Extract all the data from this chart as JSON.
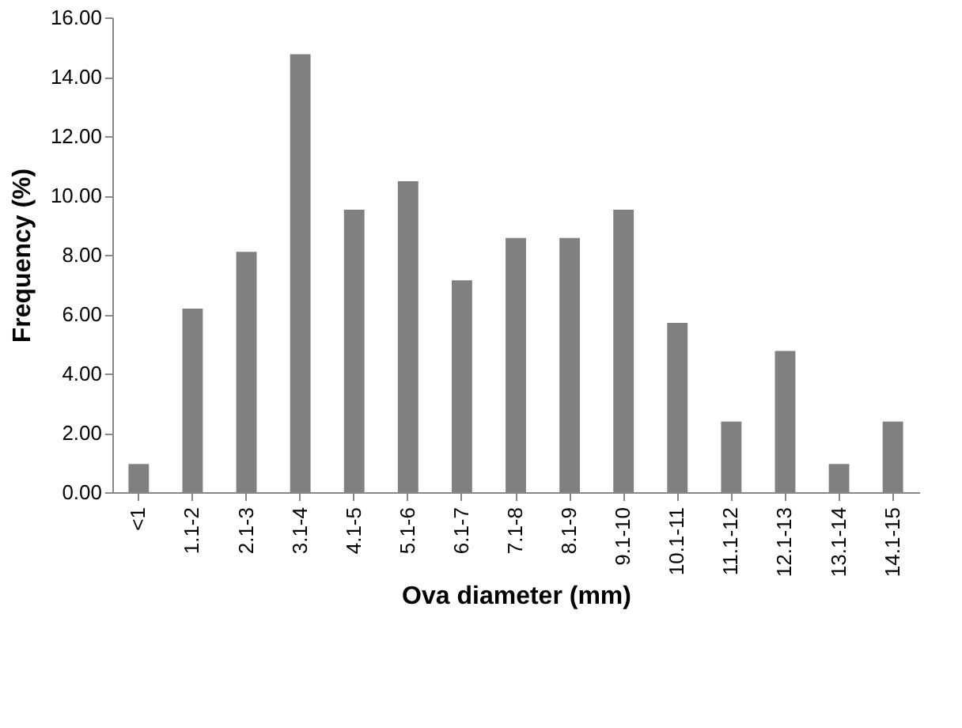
{
  "chart_data": {
    "type": "bar",
    "xlabel": "Ova diameter (mm)",
    "ylabel": "Frequency (%)",
    "categories": [
      "<1",
      "1.1-2",
      "2.1-3",
      "3.1-4",
      "4.1-5",
      "5.1-6",
      "6.1-7",
      "7.1-8",
      "8.1-9",
      "9.1-10",
      "10.1-11",
      "11.1-12",
      "12.1-13",
      "13.1-14",
      "14.1-15"
    ],
    "values": [
      0.95,
      6.19,
      8.1,
      14.76,
      9.52,
      10.48,
      7.14,
      8.57,
      8.57,
      9.52,
      5.71,
      2.38,
      4.76,
      0.95,
      2.38
    ],
    "color": "#808080",
    "ylim": [
      0,
      16
    ],
    "yticks": [
      {
        "value": 0,
        "label": "0.00"
      },
      {
        "value": 2,
        "label": "2.00"
      },
      {
        "value": 4,
        "label": "4.00"
      },
      {
        "value": 6,
        "label": "6.00"
      },
      {
        "value": 8,
        "label": "8.00"
      },
      {
        "value": 10,
        "label": "10.00"
      },
      {
        "value": 12,
        "label": "12.00"
      },
      {
        "value": 14,
        "label": "14.00"
      },
      {
        "value": 16,
        "label": "16.00"
      }
    ],
    "grid": false
  }
}
